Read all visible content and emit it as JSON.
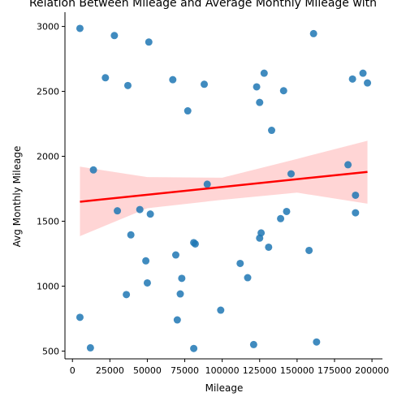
{
  "chart_data": {
    "type": "scatter",
    "title": "Relation Between Mileage and Average Monthly Mileage with",
    "xlabel": "Mileage",
    "ylabel": "Avg Monthly Mileage",
    "xlim": [
      -5000,
      207000
    ],
    "ylim": [
      440,
      3110
    ],
    "x_ticks": [
      0,
      25000,
      50000,
      75000,
      100000,
      125000,
      150000,
      175000,
      200000
    ],
    "y_ticks": [
      500,
      1000,
      1500,
      2000,
      2500,
      3000
    ],
    "colors": {
      "points": "#1f77b4",
      "regression_line": "#ff0000",
      "confidence_band": "#ffb3b3"
    },
    "points": [
      [
        5000,
        2985
      ],
      [
        28000,
        2930
      ],
      [
        51000,
        2880
      ],
      [
        22000,
        2605
      ],
      [
        37000,
        2545
      ],
      [
        67000,
        2590
      ],
      [
        77000,
        2350
      ],
      [
        88000,
        2555
      ],
      [
        123000,
        2535
      ],
      [
        128000,
        2640
      ],
      [
        125000,
        2415
      ],
      [
        141000,
        2505
      ],
      [
        133000,
        2200
      ],
      [
        161000,
        2945
      ],
      [
        187000,
        2595
      ],
      [
        194000,
        2640
      ],
      [
        197000,
        2565
      ],
      [
        184000,
        1935
      ],
      [
        14000,
        1895
      ],
      [
        90000,
        1785
      ],
      [
        146000,
        1865
      ],
      [
        189000,
        1700
      ],
      [
        189000,
        1565
      ],
      [
        30000,
        1580
      ],
      [
        45000,
        1590
      ],
      [
        52000,
        1555
      ],
      [
        39000,
        1395
      ],
      [
        139000,
        1520
      ],
      [
        143000,
        1575
      ],
      [
        81000,
        1335
      ],
      [
        82000,
        1325
      ],
      [
        126000,
        1410
      ],
      [
        125000,
        1370
      ],
      [
        131000,
        1300
      ],
      [
        158000,
        1275
      ],
      [
        49000,
        1195
      ],
      [
        69000,
        1240
      ],
      [
        112000,
        1175
      ],
      [
        117000,
        1065
      ],
      [
        73000,
        1060
      ],
      [
        50000,
        1025
      ],
      [
        36000,
        935
      ],
      [
        72000,
        940
      ],
      [
        99000,
        815
      ],
      [
        5000,
        760
      ],
      [
        70000,
        740
      ],
      [
        12000,
        525
      ],
      [
        81000,
        520
      ],
      [
        121000,
        550
      ],
      [
        163000,
        570
      ]
    ],
    "regression": {
      "x_start": 5000,
      "y_start": 1650,
      "x_end": 197000,
      "y_end": 1880
    },
    "confidence_band": {
      "x": [
        5000,
        50000,
        100000,
        150000,
        197000
      ],
      "upper": [
        1920,
        1840,
        1835,
        1980,
        2120
      ],
      "lower": [
        1385,
        1600,
        1665,
        1720,
        1635
      ]
    },
    "grid": false,
    "legend": "none"
  }
}
